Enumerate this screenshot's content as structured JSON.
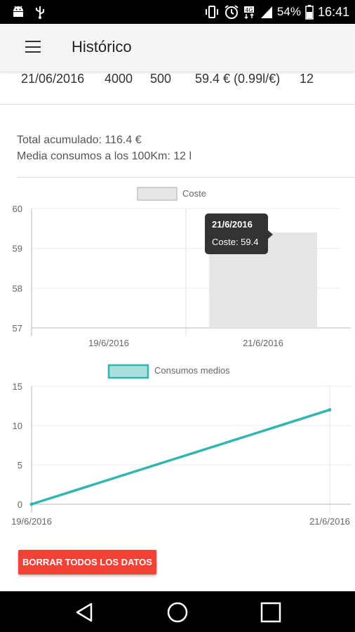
{
  "status_bar": {
    "battery_percent": "54%",
    "time": "16:41",
    "icons": [
      "android-icon",
      "usb-icon",
      "vibrate-icon",
      "alarm-icon",
      "hd-network-icon",
      "signal-icon",
      "battery-icon"
    ]
  },
  "app_bar": {
    "title": "Histórico",
    "menu_icon": "hamburger-menu-icon"
  },
  "record": {
    "date": "21/06/2016",
    "km": "4000",
    "distance": "500",
    "cost": "59.4 € (0.99l/€)",
    "consumption": "12"
  },
  "summary": {
    "total": "Total acumulado: 116.4 €",
    "average": "Media consumos a los 100Km: 12 l"
  },
  "chart_data": [
    {
      "type": "bar",
      "categories": [
        "19/6/2016",
        "21/6/2016"
      ],
      "series": [
        {
          "name": "Coste",
          "values": [
            null,
            59.4
          ],
          "color": "#e5e5e5"
        }
      ],
      "yticks": [
        57,
        58,
        59,
        60
      ],
      "ylim": [
        57,
        60
      ],
      "legend": "top-center",
      "grid": true,
      "tooltip": {
        "title": "21/6/2016",
        "text": "Coste: 59.4"
      }
    },
    {
      "type": "line",
      "x": [
        "19/6/2016",
        "21/6/2016"
      ],
      "series": [
        {
          "name": "Consumos medios",
          "values": [
            0,
            12
          ],
          "color": "#33b5b0"
        }
      ],
      "yticks": [
        0,
        5,
        10,
        15
      ],
      "ylim": [
        0,
        15
      ],
      "legend": "top-center",
      "grid": true
    }
  ],
  "actions": {
    "clear_label": "BORRAR TODOS LOS DATOS"
  },
  "nav_bar": {
    "icons": [
      "back-icon",
      "home-icon",
      "recents-icon"
    ]
  }
}
